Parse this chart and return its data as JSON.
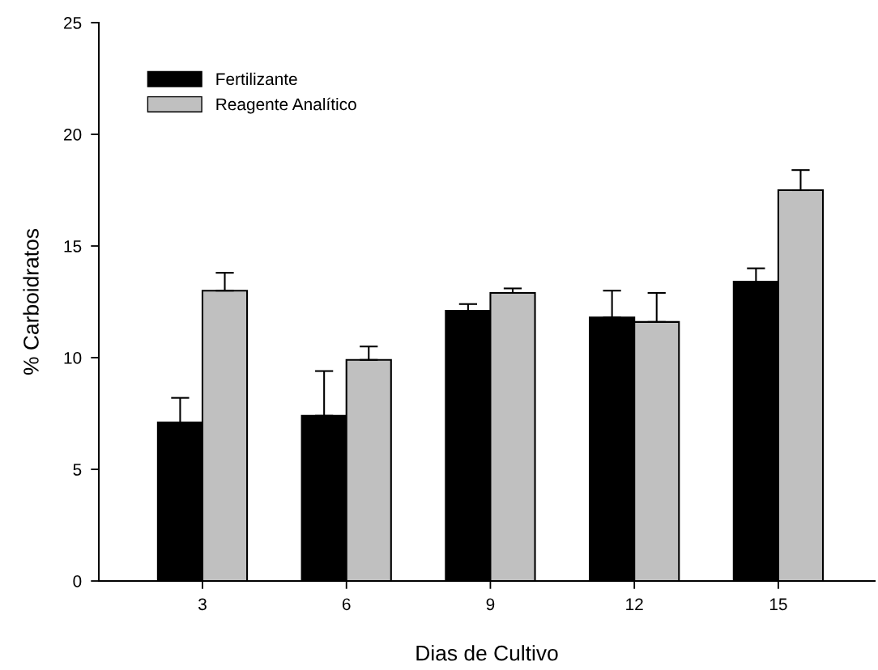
{
  "chart_data": {
    "type": "bar",
    "xlabel": "Dias de Cultivo",
    "ylabel": "% Carboidratos",
    "categories": [
      "3",
      "6",
      "9",
      "12",
      "15"
    ],
    "series": [
      {
        "name": "Fertilizante",
        "color": "#000000",
        "values": [
          7.1,
          7.4,
          12.1,
          11.8,
          13.4
        ],
        "errors": [
          [
            7.1,
            8.2
          ],
          [
            7.4,
            9.4
          ],
          [
            12.1,
            12.4
          ],
          [
            11.8,
            13.0
          ],
          [
            13.4,
            14.0
          ]
        ]
      },
      {
        "name": "Reagente Analítico",
        "color": "#c0c0c0",
        "values": [
          13.0,
          9.9,
          12.9,
          11.6,
          17.5
        ],
        "errors": [
          [
            13.0,
            13.8
          ],
          [
            9.9,
            10.5
          ],
          [
            12.9,
            13.1
          ],
          [
            11.6,
            12.9
          ],
          [
            17.5,
            18.4
          ]
        ]
      }
    ],
    "ylim": [
      0,
      25
    ],
    "yticks": [
      0,
      5,
      10,
      15,
      20,
      25
    ],
    "grid": false,
    "legend": "top left"
  }
}
